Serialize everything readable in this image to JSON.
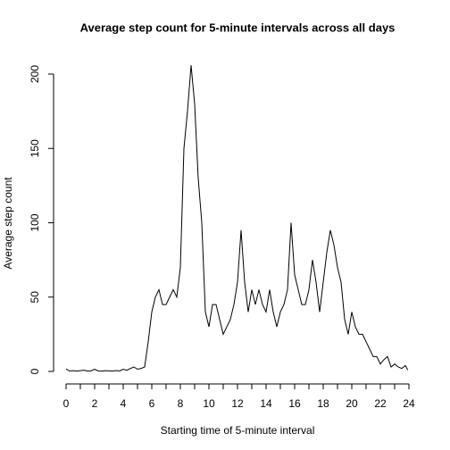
{
  "chart_data": {
    "type": "line",
    "title": "Average step count for 5-minute intervals across all days",
    "xlabel": "Starting time of 5-minute interval",
    "ylabel": "Average step count",
    "x": [
      0,
      0.25,
      0.5,
      0.75,
      1,
      1.25,
      1.5,
      1.75,
      2,
      2.25,
      2.5,
      2.75,
      3,
      3.25,
      3.5,
      3.75,
      4,
      4.25,
      4.5,
      4.75,
      5,
      5.25,
      5.5,
      5.75,
      6,
      6.25,
      6.5,
      6.75,
      7,
      7.25,
      7.5,
      7.75,
      8,
      8.25,
      8.5,
      8.75,
      9,
      9.25,
      9.5,
      9.75,
      10,
      10.25,
      10.5,
      10.75,
      11,
      11.25,
      11.5,
      11.75,
      12,
      12.25,
      12.5,
      12.75,
      13,
      13.25,
      13.5,
      13.75,
      14,
      14.25,
      14.5,
      14.75,
      15,
      15.25,
      15.5,
      15.75,
      16,
      16.25,
      16.5,
      16.75,
      17,
      17.25,
      17.5,
      17.75,
      18,
      18.25,
      18.5,
      18.75,
      19,
      19.25,
      19.5,
      19.75,
      20,
      20.25,
      20.5,
      20.75,
      21,
      21.25,
      21.5,
      21.75,
      22,
      22.25,
      22.5,
      22.75,
      23,
      23.25,
      23.5,
      23.75,
      23.92
    ],
    "series": [
      {
        "name": "Average step count",
        "color": "#000000",
        "values": [
          1.7,
          0.3,
          0.5,
          0.2,
          0.5,
          0.8,
          0.2,
          0.4,
          1.5,
          0.3,
          0.2,
          0.5,
          0.4,
          0.2,
          0.6,
          0.3,
          1.5,
          0.8,
          2,
          3,
          1.5,
          2,
          3,
          20,
          40,
          50,
          55,
          45,
          45,
          50,
          55,
          50,
          70,
          150,
          175,
          206,
          180,
          130,
          100,
          40,
          30,
          45,
          45,
          35,
          25,
          30,
          35,
          45,
          60,
          95,
          60,
          40,
          55,
          45,
          55,
          45,
          40,
          55,
          40,
          30,
          40,
          45,
          55,
          100,
          65,
          55,
          45,
          45,
          55,
          75,
          60,
          40,
          60,
          80,
          95,
          85,
          70,
          60,
          35,
          25,
          40,
          30,
          25,
          25,
          20,
          15,
          10,
          10,
          5,
          8,
          10,
          3,
          5,
          3,
          2,
          4,
          1
        ]
      }
    ],
    "xlim": [
      0,
      24
    ],
    "ylim": [
      0,
      200
    ],
    "xticks": [
      0,
      2,
      4,
      6,
      8,
      10,
      12,
      14,
      16,
      18,
      20,
      22,
      24
    ],
    "minor_xticks": [
      1,
      3,
      5,
      7,
      9,
      11,
      13,
      15,
      17,
      19,
      21,
      23
    ],
    "yticks": [
      0,
      50,
      100,
      150,
      200
    ]
  }
}
